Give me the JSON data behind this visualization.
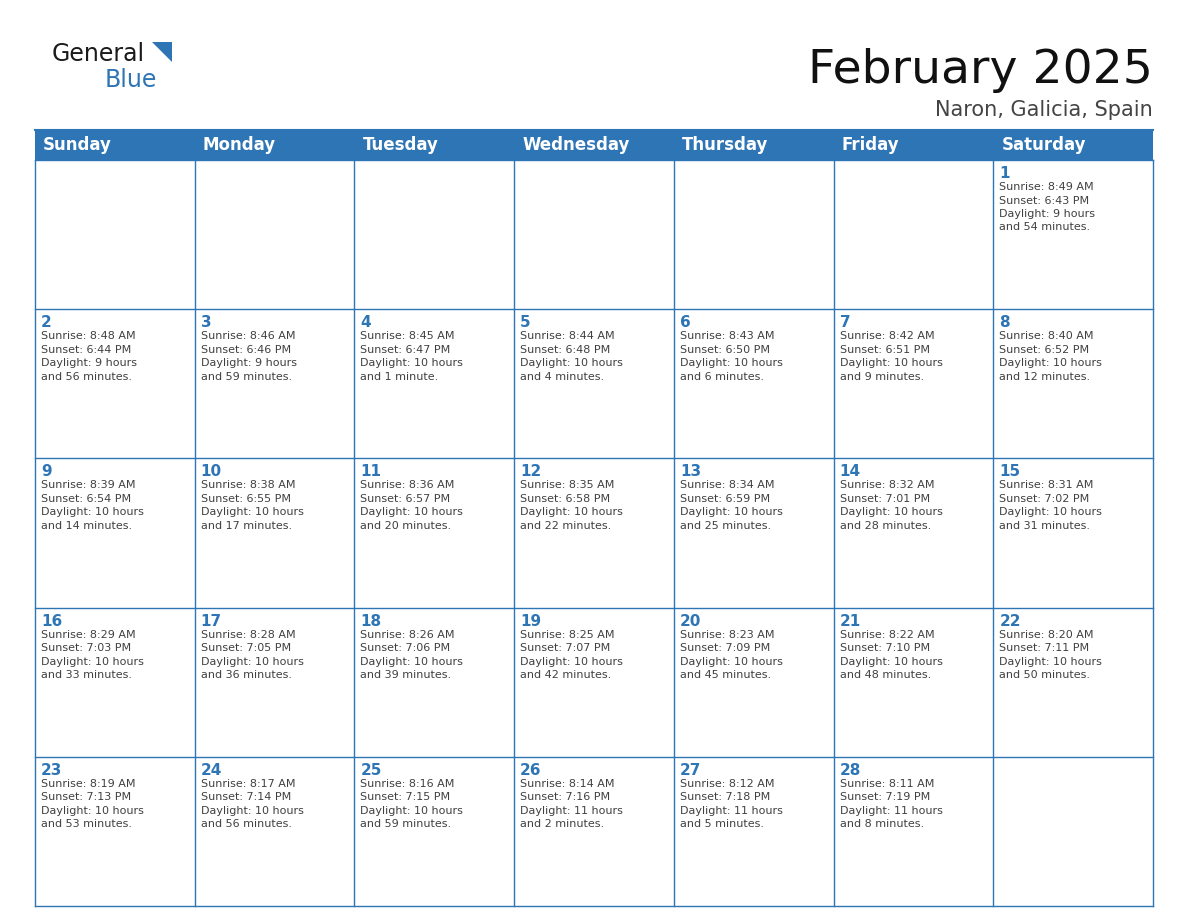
{
  "title": "February 2025",
  "subtitle": "Naron, Galicia, Spain",
  "header_bg": "#2E75B6",
  "header_text_color": "#FFFFFF",
  "cell_bg": "#FFFFFF",
  "grid_line_color": "#2E75B6",
  "day_number_color": "#2E75B6",
  "cell_text_color": "#404040",
  "days_of_week": [
    "Sunday",
    "Monday",
    "Tuesday",
    "Wednesday",
    "Thursday",
    "Friday",
    "Saturday"
  ],
  "weeks": [
    [
      null,
      null,
      null,
      null,
      null,
      null,
      1
    ],
    [
      2,
      3,
      4,
      5,
      6,
      7,
      8
    ],
    [
      9,
      10,
      11,
      12,
      13,
      14,
      15
    ],
    [
      16,
      17,
      18,
      19,
      20,
      21,
      22
    ],
    [
      23,
      24,
      25,
      26,
      27,
      28,
      null
    ]
  ],
  "cell_data": {
    "1": {
      "sunrise": "8:49 AM",
      "sunset": "6:43 PM",
      "daylight": "9 hours and 54 minutes."
    },
    "2": {
      "sunrise": "8:48 AM",
      "sunset": "6:44 PM",
      "daylight": "9 hours and 56 minutes."
    },
    "3": {
      "sunrise": "8:46 AM",
      "sunset": "6:46 PM",
      "daylight": "9 hours and 59 minutes."
    },
    "4": {
      "sunrise": "8:45 AM",
      "sunset": "6:47 PM",
      "daylight": "10 hours and 1 minute."
    },
    "5": {
      "sunrise": "8:44 AM",
      "sunset": "6:48 PM",
      "daylight": "10 hours and 4 minutes."
    },
    "6": {
      "sunrise": "8:43 AM",
      "sunset": "6:50 PM",
      "daylight": "10 hours and 6 minutes."
    },
    "7": {
      "sunrise": "8:42 AM",
      "sunset": "6:51 PM",
      "daylight": "10 hours and 9 minutes."
    },
    "8": {
      "sunrise": "8:40 AM",
      "sunset": "6:52 PM",
      "daylight": "10 hours and 12 minutes."
    },
    "9": {
      "sunrise": "8:39 AM",
      "sunset": "6:54 PM",
      "daylight": "10 hours and 14 minutes."
    },
    "10": {
      "sunrise": "8:38 AM",
      "sunset": "6:55 PM",
      "daylight": "10 hours and 17 minutes."
    },
    "11": {
      "sunrise": "8:36 AM",
      "sunset": "6:57 PM",
      "daylight": "10 hours and 20 minutes."
    },
    "12": {
      "sunrise": "8:35 AM",
      "sunset": "6:58 PM",
      "daylight": "10 hours and 22 minutes."
    },
    "13": {
      "sunrise": "8:34 AM",
      "sunset": "6:59 PM",
      "daylight": "10 hours and 25 minutes."
    },
    "14": {
      "sunrise": "8:32 AM",
      "sunset": "7:01 PM",
      "daylight": "10 hours and 28 minutes."
    },
    "15": {
      "sunrise": "8:31 AM",
      "sunset": "7:02 PM",
      "daylight": "10 hours and 31 minutes."
    },
    "16": {
      "sunrise": "8:29 AM",
      "sunset": "7:03 PM",
      "daylight": "10 hours and 33 minutes."
    },
    "17": {
      "sunrise": "8:28 AM",
      "sunset": "7:05 PM",
      "daylight": "10 hours and 36 minutes."
    },
    "18": {
      "sunrise": "8:26 AM",
      "sunset": "7:06 PM",
      "daylight": "10 hours and 39 minutes."
    },
    "19": {
      "sunrise": "8:25 AM",
      "sunset": "7:07 PM",
      "daylight": "10 hours and 42 minutes."
    },
    "20": {
      "sunrise": "8:23 AM",
      "sunset": "7:09 PM",
      "daylight": "10 hours and 45 minutes."
    },
    "21": {
      "sunrise": "8:22 AM",
      "sunset": "7:10 PM",
      "daylight": "10 hours and 48 minutes."
    },
    "22": {
      "sunrise": "8:20 AM",
      "sunset": "7:11 PM",
      "daylight": "10 hours and 50 minutes."
    },
    "23": {
      "sunrise": "8:19 AM",
      "sunset": "7:13 PM",
      "daylight": "10 hours and 53 minutes."
    },
    "24": {
      "sunrise": "8:17 AM",
      "sunset": "7:14 PM",
      "daylight": "10 hours and 56 minutes."
    },
    "25": {
      "sunrise": "8:16 AM",
      "sunset": "7:15 PM",
      "daylight": "10 hours and 59 minutes."
    },
    "26": {
      "sunrise": "8:14 AM",
      "sunset": "7:16 PM",
      "daylight": "11 hours and 2 minutes."
    },
    "27": {
      "sunrise": "8:12 AM",
      "sunset": "7:18 PM",
      "daylight": "11 hours and 5 minutes."
    },
    "28": {
      "sunrise": "8:11 AM",
      "sunset": "7:19 PM",
      "daylight": "11 hours and 8 minutes."
    }
  }
}
